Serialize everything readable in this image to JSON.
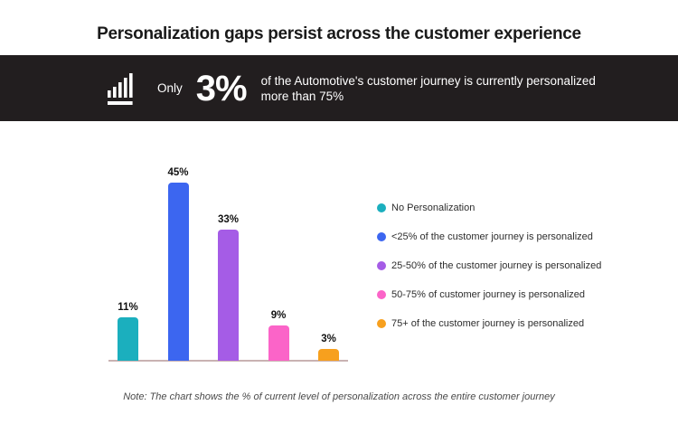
{
  "title": "Personalization gaps persist across the customer experience",
  "banner": {
    "icon": "bar-chart-icon",
    "qualifier": "Only",
    "stat": "3%",
    "description_line1": "of the Automotive's customer journey is currently personalized",
    "description_line2": "more than 75%",
    "background_color": "#221e1f",
    "text_color": "#ffffff"
  },
  "chart_data": {
    "type": "bar",
    "categories": [
      "No Personalization",
      "<25% of the customer journey is personalized",
      "25-50% of the customer journey is personalized",
      "50-75% of customer journey is personalized",
      "75+ of the customer journey is personalized"
    ],
    "values": [
      11,
      45,
      33,
      9,
      3
    ],
    "value_labels": [
      "11%",
      "45%",
      "33%",
      "9%",
      "3%"
    ],
    "colors": [
      "#1bafbe",
      "#3c66f0",
      "#a55ce6",
      "#fb64c8",
      "#f7a01e"
    ],
    "title": "",
    "xlabel": "",
    "ylabel": "",
    "ylim": [
      0,
      45
    ],
    "grid": false,
    "legend_position": "right",
    "baseline_color": "#c9b2b2"
  },
  "note": "Note: The chart shows the % of current level of personalization across the entire customer journey"
}
